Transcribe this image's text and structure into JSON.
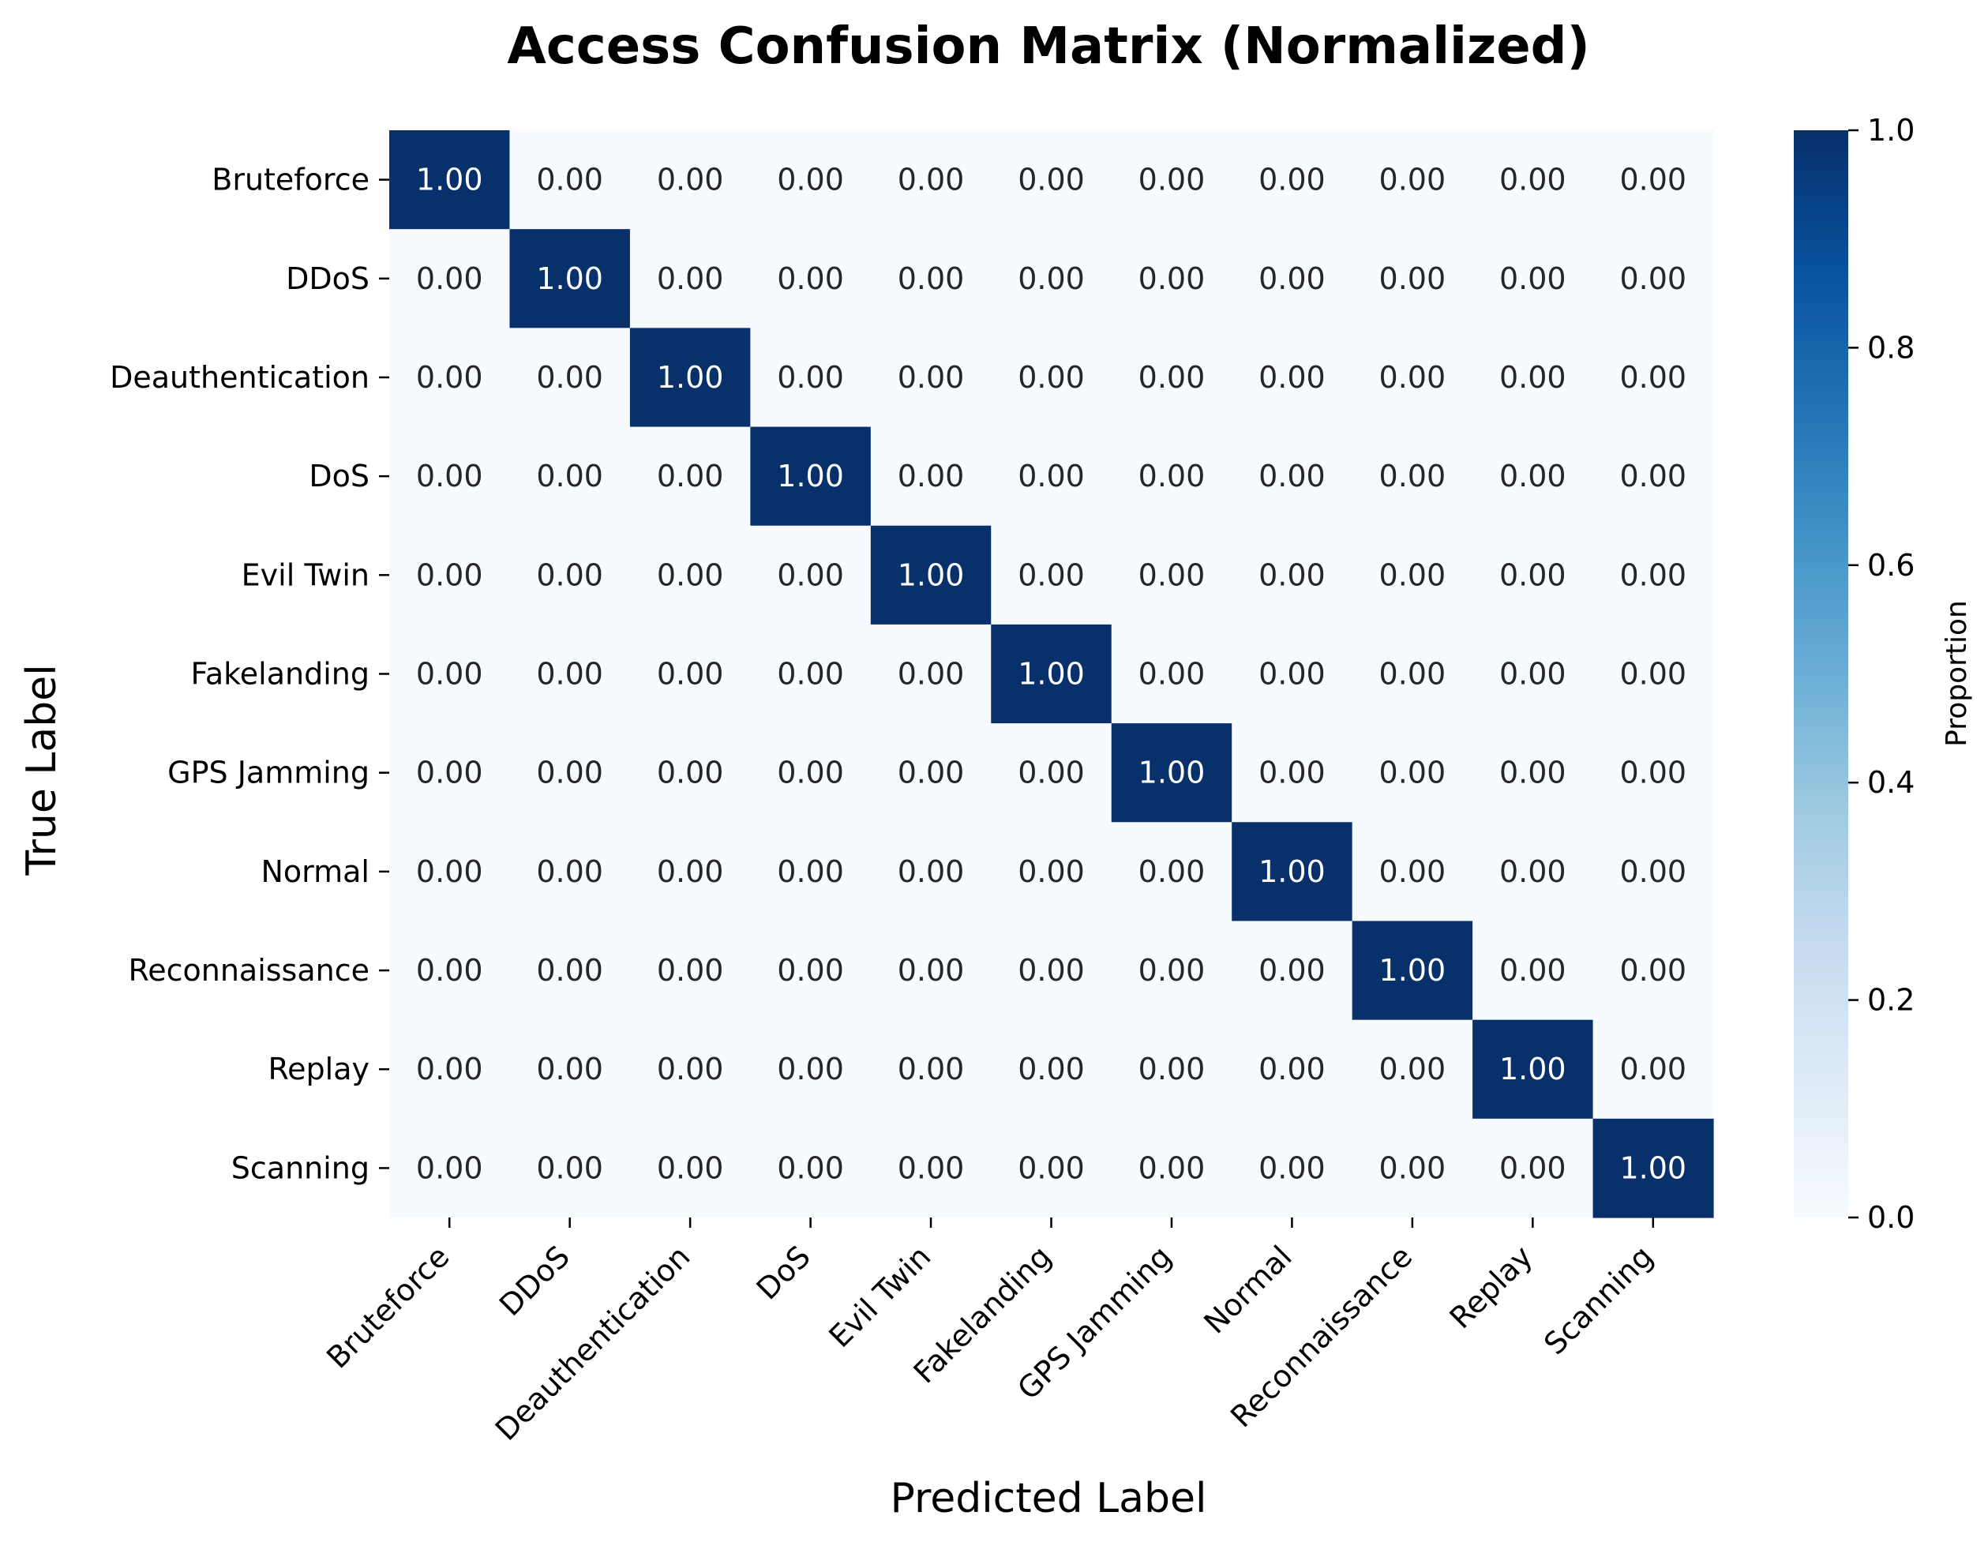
{
  "chart_data": {
    "type": "heatmap",
    "title": "Access Confusion Matrix (Normalized)",
    "xlabel": "Predicted Label",
    "ylabel": "True Label",
    "x_categories": [
      "Bruteforce",
      "DDoS",
      "Deauthentication",
      "DoS",
      "Evil Twin",
      "Fakelanding",
      "GPS Jamming",
      "Normal",
      "Reconnaissance",
      "Replay",
      "Scanning"
    ],
    "y_categories": [
      "Bruteforce",
      "DDoS",
      "Deauthentication",
      "DoS",
      "Evil Twin",
      "Fakelanding",
      "GPS Jamming",
      "Normal",
      "Reconnaissance",
      "Replay",
      "Scanning"
    ],
    "values": [
      [
        1.0,
        0.0,
        0.0,
        0.0,
        0.0,
        0.0,
        0.0,
        0.0,
        0.0,
        0.0,
        0.0
      ],
      [
        0.0,
        1.0,
        0.0,
        0.0,
        0.0,
        0.0,
        0.0,
        0.0,
        0.0,
        0.0,
        0.0
      ],
      [
        0.0,
        0.0,
        1.0,
        0.0,
        0.0,
        0.0,
        0.0,
        0.0,
        0.0,
        0.0,
        0.0
      ],
      [
        0.0,
        0.0,
        0.0,
        1.0,
        0.0,
        0.0,
        0.0,
        0.0,
        0.0,
        0.0,
        0.0
      ],
      [
        0.0,
        0.0,
        0.0,
        0.0,
        1.0,
        0.0,
        0.0,
        0.0,
        0.0,
        0.0,
        0.0
      ],
      [
        0.0,
        0.0,
        0.0,
        0.0,
        0.0,
        1.0,
        0.0,
        0.0,
        0.0,
        0.0,
        0.0
      ],
      [
        0.0,
        0.0,
        0.0,
        0.0,
        0.0,
        0.0,
        1.0,
        0.0,
        0.0,
        0.0,
        0.0
      ],
      [
        0.0,
        0.0,
        0.0,
        0.0,
        0.0,
        0.0,
        0.0,
        1.0,
        0.0,
        0.0,
        0.0
      ],
      [
        0.0,
        0.0,
        0.0,
        0.0,
        0.0,
        0.0,
        0.0,
        0.0,
        1.0,
        0.0,
        0.0
      ],
      [
        0.0,
        0.0,
        0.0,
        0.0,
        0.0,
        0.0,
        0.0,
        0.0,
        0.0,
        1.0,
        0.0
      ],
      [
        0.0,
        0.0,
        0.0,
        0.0,
        0.0,
        0.0,
        0.0,
        0.0,
        0.0,
        0.0,
        1.0
      ]
    ],
    "value_format": "2 decimals",
    "colormap": "Blues",
    "colorbar": {
      "label": "Proportion",
      "range": [
        0.0,
        1.0
      ],
      "ticks": [
        "0.0",
        "0.2",
        "0.4",
        "0.6",
        "0.8",
        "1.0"
      ]
    },
    "colors": {
      "low": "#f7fbff",
      "high": "#08306b",
      "text_on_dark": "#ffffff",
      "text_on_light": "#262626"
    }
  }
}
